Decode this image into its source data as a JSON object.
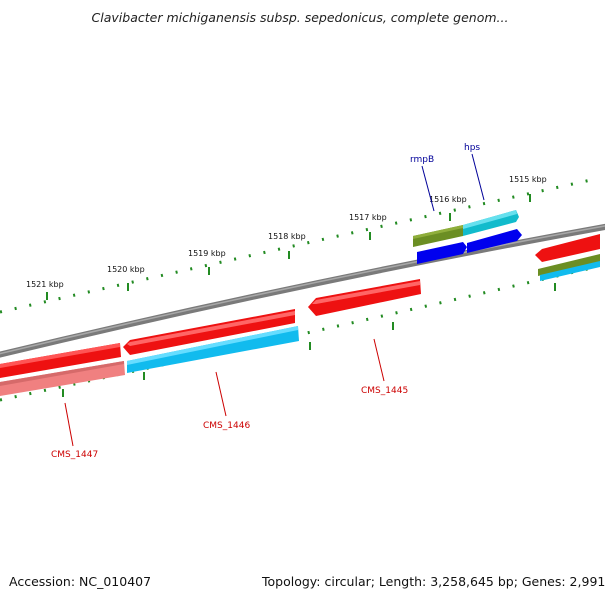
{
  "title": "Clavibacter michiganensis subsp. sepedonicus, complete genom...",
  "footer": {
    "accession": "Accession: NC_010407",
    "summary": "Topology: circular; Length: 3,258,645 bp; Genes: 2,991"
  },
  "scale_ticks": [
    "1521 kbp",
    "1520 kbp",
    "1519 kbp",
    "1518 kbp",
    "1517 kbp",
    "1516 kbp",
    "1515 kbp"
  ],
  "gene_labels": [
    "rmpB",
    "hps",
    "CMS_1445",
    "CMS_1446",
    "CMS_1447"
  ],
  "colors": {
    "backbone": "#808080",
    "cds_red": "#ee1111",
    "cds_pink": "#f08080",
    "cds_cyan": "#11bbee",
    "cds_blue": "#0000ee",
    "cds_olive": "#6b8e23",
    "ticks": "#228b22",
    "label_red": "#cc0000",
    "label_blue": "#000099"
  }
}
